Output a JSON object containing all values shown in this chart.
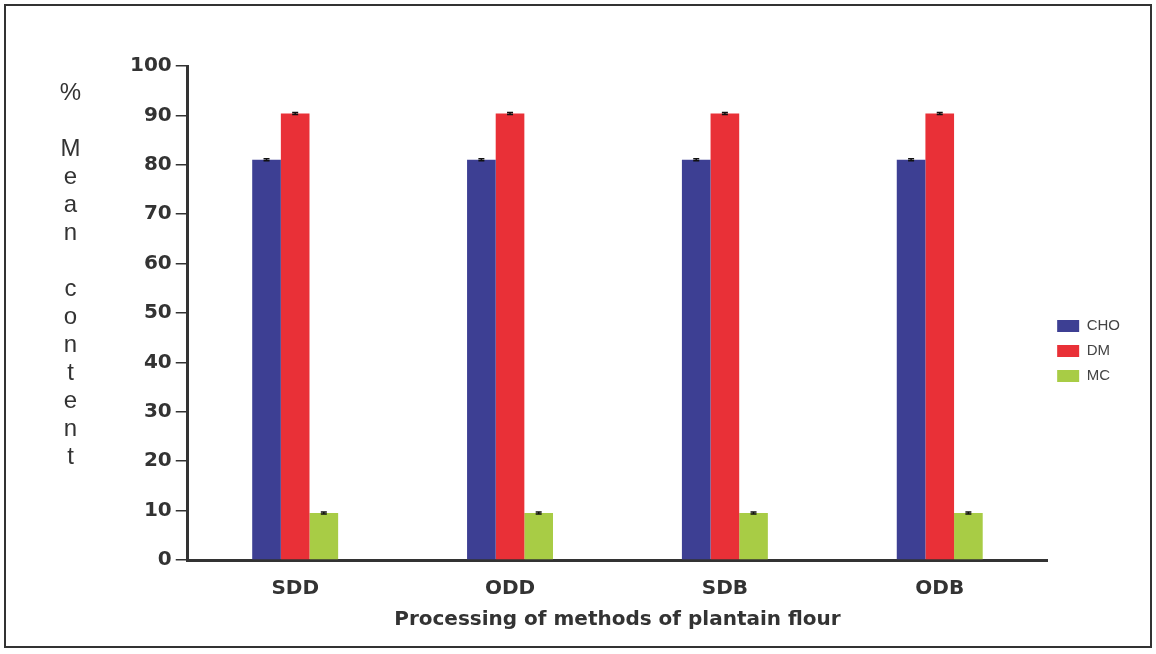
{
  "chart_data": {
    "type": "bar",
    "xlabel": "Processing of methods of plantain flour",
    "ylabel": "% Mean content",
    "categories": [
      "SDD",
      "ODD",
      "SDB",
      "ODB"
    ],
    "series": [
      {
        "name": "CHO",
        "color": "#3d3f93",
        "values": [
          81,
          81,
          81,
          81
        ],
        "errors": [
          0.2,
          0.2,
          0.2,
          0.2
        ]
      },
      {
        "name": "DM",
        "color": "#e93037",
        "values": [
          90.4,
          90.4,
          90.4,
          90.4
        ],
        "errors": [
          0.2,
          0.2,
          0.2,
          0.2
        ]
      },
      {
        "name": "MC",
        "color": "#a8cc45",
        "values": [
          9.5,
          9.5,
          9.5,
          9.5
        ],
        "errors": [
          0.2,
          0.2,
          0.2,
          0.2
        ]
      }
    ],
    "ylim": [
      0,
      100
    ],
    "yticks": [
      0,
      10,
      20,
      30,
      40,
      50,
      60,
      70,
      80,
      90,
      100
    ],
    "grid": false,
    "legend": "right"
  }
}
